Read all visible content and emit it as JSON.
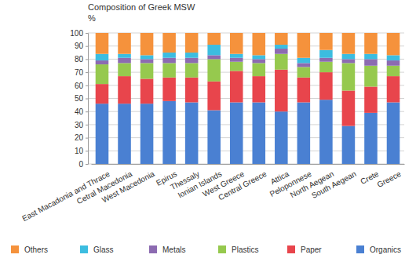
{
  "chart_data": {
    "type": "bar",
    "title": "Composition of Greek MSW",
    "y_label": "%",
    "stacked": true,
    "grid": true,
    "legend": "bottom",
    "categories": [
      "East Macadonia and Thrace",
      "Cetral Macedonia",
      "West Macedonia",
      "Epirus",
      "Thessaly",
      "Ionian Islands",
      "West Greece",
      "Central Greece",
      "Attica",
      "Peloponnese",
      "North Aegean",
      "South Aegean",
      "Crete",
      "Greece"
    ],
    "ylim": [
      0,
      100
    ],
    "yticks": [
      0,
      10,
      20,
      30,
      40,
      50,
      60,
      70,
      80,
      90,
      100
    ],
    "series": [
      {
        "name": "Organics",
        "color": "#4a80d2",
        "values": [
          46,
          46,
          46,
          48,
          47,
          41,
          47,
          47,
          40,
          47,
          49,
          29,
          39,
          47
        ]
      },
      {
        "name": "Paper",
        "color": "#e8454c",
        "values": [
          15,
          21,
          19,
          18,
          19,
          22,
          24,
          20,
          32,
          19,
          21,
          27,
          20,
          20
        ]
      },
      {
        "name": "Plastics",
        "color": "#96c94e",
        "values": [
          15,
          10,
          12,
          11,
          11,
          17,
          7,
          10,
          12,
          8,
          8,
          21,
          16,
          8
        ]
      },
      {
        "name": "Metals",
        "color": "#8c6bb1",
        "values": [
          3,
          4,
          3,
          4,
          4,
          3,
          3,
          3,
          4,
          3,
          3,
          3,
          5,
          4
        ]
      },
      {
        "name": "Glass",
        "color": "#3cbde0",
        "values": [
          5,
          3,
          3,
          4,
          4,
          8,
          3,
          3,
          3,
          4,
          6,
          4,
          4,
          4
        ]
      },
      {
        "name": "Others",
        "color": "#f5923c",
        "values": [
          16,
          16,
          17,
          15,
          15,
          9,
          16,
          17,
          9,
          19,
          13,
          16,
          16,
          17
        ]
      }
    ]
  }
}
